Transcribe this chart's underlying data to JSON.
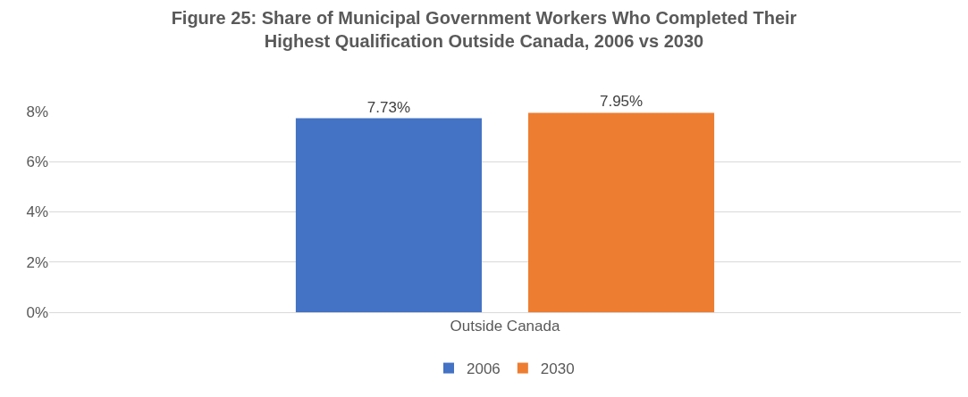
{
  "chart_data": {
    "type": "bar",
    "title": "Figure 25: Share of Municipal Government Workers Who Completed Their Highest Qualification Outside Canada, 2006 vs 2030",
    "categories": [
      "Outside Canada"
    ],
    "series": [
      {
        "name": "2006",
        "color": "#4472c4",
        "values": [
          7.73
        ],
        "value_labels": [
          "7.73%"
        ]
      },
      {
        "name": "2030",
        "color": "#ed7d31",
        "values": [
          7.95
        ],
        "value_labels": [
          "7.95%"
        ]
      }
    ],
    "ylim": [
      0,
      8
    ],
    "yticks": [
      {
        "value": 0,
        "label": "0%"
      },
      {
        "value": 2,
        "label": "2%"
      },
      {
        "value": 4,
        "label": "4%"
      },
      {
        "value": 6,
        "label": "6%"
      },
      {
        "value": 8,
        "label": "8%"
      }
    ],
    "grid": "y",
    "legend": "bottom"
  }
}
